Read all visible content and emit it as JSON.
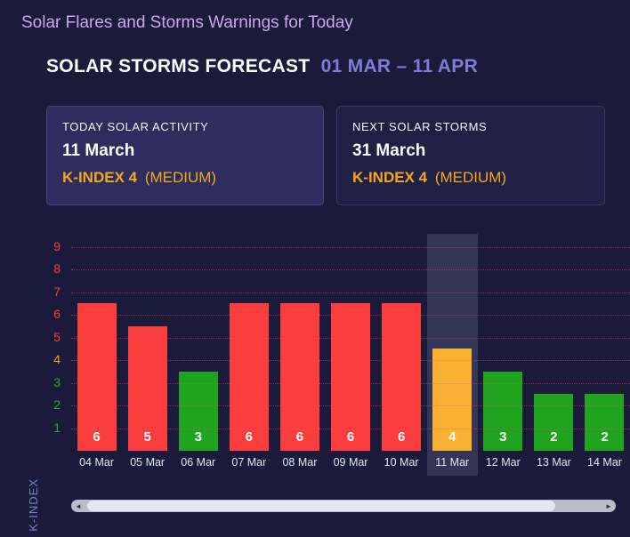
{
  "page": {
    "title": "Solar Flares and Storms Warnings for Today"
  },
  "header": {
    "title": "SOLAR STORMS FORECAST",
    "date_range": "01 MAR – 11 APR"
  },
  "cards": {
    "today": {
      "label": "TODAY SOLAR ACTIVITY",
      "date": "11 March",
      "kindex_label": "K-INDEX 4",
      "severity": "(MEDIUM)"
    },
    "next": {
      "label": "NEXT SOLAR STORMS",
      "date": "31 March",
      "kindex_label": "K-INDEX 4",
      "severity": "(MEDIUM)"
    }
  },
  "chart_data": {
    "type": "bar",
    "categories": [
      "04 Mar",
      "05 Mar",
      "06 Mar",
      "07 Mar",
      "08 Mar",
      "09 Mar",
      "10 Mar",
      "11 Mar",
      "12 Mar",
      "13 Mar",
      "14 Mar"
    ],
    "values": [
      6,
      5,
      3,
      6,
      6,
      6,
      6,
      4,
      3,
      2,
      2
    ],
    "title": "",
    "xlabel": "",
    "ylabel": "K-INDEX",
    "ylim": [
      0,
      9.5
    ],
    "yticks": [
      1,
      2,
      3,
      4,
      5,
      6,
      7,
      8,
      9
    ],
    "grid": "dotted-horizontal",
    "legend": "none",
    "highlighted_category": "11 Mar",
    "severity_scale": {
      "green_max": 3,
      "orange_value": 4,
      "red_min": 5
    }
  },
  "colors": {
    "background": "#1b1a3a",
    "title_purple": "#c9a9ee",
    "range_periwinkle": "#7e7ed6",
    "kindex_orange": "#f5a71c",
    "bar_red": "#fb3d3d",
    "bar_green": "#1fa41f",
    "bar_orange": "#f8b133",
    "tick_red": "#fb3d3d",
    "tick_orange": "#f6a51c",
    "tick_green": "#27ab27",
    "card_selected_bg": "#2e2d5d"
  },
  "scrollbar": {
    "left_arrow": "◄",
    "right_arrow": "►"
  }
}
